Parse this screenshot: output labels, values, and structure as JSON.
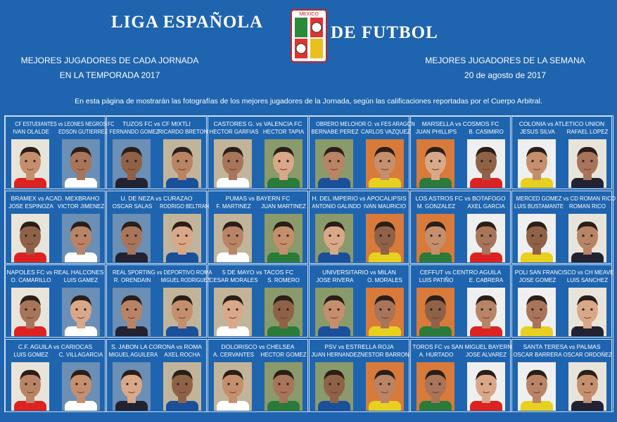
{
  "header": {
    "title_left": "LIGA ESPAÑOLA",
    "title_right": "DE FUTBOL",
    "logo": "MEXICO",
    "left_lines": [
      "MEJORES JUGADORES DE CADA JORNADA",
      "EN LA TEMPORADA 2017"
    ],
    "right_lines": [
      "MEJORES JUGADORES DE LA SEMANA",
      "20 de agosto de 2017"
    ],
    "intro": "En esta página de mostrarán las fotografías de los mejores jugadores de la Jornada, según las calificaciones reportadas por el Cuerpo Arbitral."
  },
  "grid": {
    "rows": [
      [
        {
          "match": "CF ESTUDIANTES vs LEONES NEGROS FC",
          "players": [
            "IVAN OLALDE",
            "EDSON GUTIERREZ"
          ]
        },
        {
          "match": "TUZOS FC vs CF MIXTLI",
          "players": [
            "FERNANDO GOMEZ",
            "RICARDO BRETON"
          ]
        },
        {
          "match": "CASTORES G. vs VALENCIA FC",
          "players": [
            "HECTOR GARFIAS",
            "HECTOR TAPIA"
          ]
        },
        {
          "match": "OBRERO MELCHOR O. vs FES ARAGON",
          "players": [
            "BERNABE PEREZ",
            "CARLOS VAZQUEZ"
          ]
        },
        {
          "match": "MARSELLA vs COSMOS FC",
          "players": [
            "JUAN PHILLIPS",
            "B. CASIMIRO"
          ]
        },
        {
          "match": "COLONIA vs ATLETICO UNION",
          "players": [
            "JESUS SILVA",
            "RAFAEL LOPEZ"
          ]
        }
      ],
      [
        {
          "match": "BRAMEX vs ACAD. MEXBRAHO",
          "players": [
            "JOSE ESPINOZA",
            "VICTOR JIMENEZ"
          ]
        },
        {
          "match": "U. DE NEZA vs CURAZAO",
          "players": [
            "OSCAR SALAS",
            "RODRIGO BELTRAN"
          ]
        },
        {
          "match": "PUMAS vs BAYERN FC",
          "players": [
            "F. MARTINEZ",
            "JUAN MARTINEZ"
          ]
        },
        {
          "match": "H. DEL IMPERIO vs APOCALIPSIS",
          "players": [
            "ANTONIO GALINDO",
            "IVAN MAURICIO"
          ]
        },
        {
          "match": "LOS ASTROS FC vs BOTAFOGO",
          "players": [
            "M. GONZALEZ",
            "AXEL GARCIA"
          ]
        },
        {
          "match": "MERCED GOMEZ vs CD ROMAN RICO",
          "players": [
            "LUIS BUSTAMANTE",
            "ROMAN RICO"
          ]
        }
      ],
      [
        {
          "match": "NAPOLES FC vs REAL HALCONES",
          "players": [
            "O. CAMARILLO",
            "LUIS GAMEZ"
          ]
        },
        {
          "match": "REAL SPORTING vs DEPORTIVO ROMA",
          "players": [
            "R. ORENDAIN",
            "MIGUEL RODRIGUEZ"
          ]
        },
        {
          "match": "5 DE MAYO vs TACOS FC",
          "players": [
            "CESAR MORALES",
            "S. ROMERO"
          ]
        },
        {
          "match": "UNIVERSITARIO vs MILAN",
          "players": [
            "JOSE RIVERA",
            "O. MORALES"
          ]
        },
        {
          "match": "CEFFUT vs CENTRO AGUILA",
          "players": [
            "LUIS PATIÑO",
            "E. CABRERA"
          ]
        },
        {
          "match": "POLI SAN FRANCISCO vs CH MEAVE",
          "players": [
            "JOSE GOMEZ",
            "LUIS SANCHEZ"
          ]
        }
      ],
      [
        {
          "match": "C.F. AGUILA vs CARIOCAS",
          "players": [
            "LUIS GOMEZ",
            "C. VILLAGARCIA"
          ]
        },
        {
          "match": "S. JABON LA CORONA vs ROMA",
          "players": [
            "MIGUEL AGUILERA",
            "AXEL ROCHA"
          ]
        },
        {
          "match": "DOLORISCO vs CHELSEA",
          "players": [
            "A. CERVANTES",
            "HECTOR GOMEZ"
          ]
        },
        {
          "match": "PSV vs ESTRELLA ROJA",
          "players": [
            "JUAN HERNANDEZ",
            "NESTOR BARRON"
          ]
        },
        {
          "match": "TOROS FC vs SAN MIGUEL BAYERN",
          "players": [
            "A. HURTADO",
            "JOSE ALVAREZ"
          ]
        },
        {
          "match": "SANTA TERESA vs PALMAS",
          "players": [
            "OSCAR BARRERA",
            "OSCAR ORDOÑEZ"
          ]
        }
      ]
    ]
  }
}
